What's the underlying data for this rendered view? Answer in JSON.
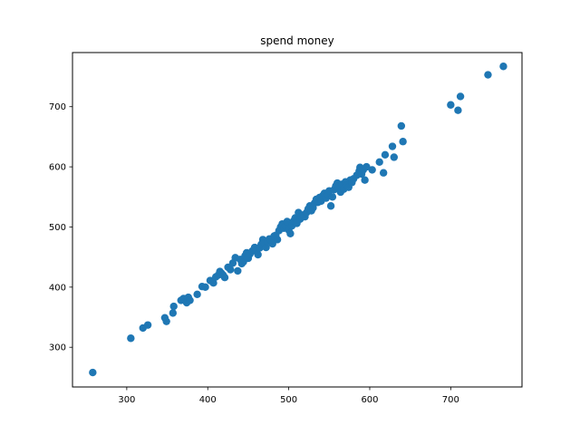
{
  "chart_data": {
    "type": "scatter",
    "title": "spend money",
    "xlabel": "",
    "ylabel": "",
    "xlim": [
      233,
      788
    ],
    "ylim": [
      234,
      790
    ],
    "xticks": [
      300,
      400,
      500,
      600,
      700
    ],
    "yticks": [
      300,
      400,
      500,
      600,
      700
    ],
    "grid": false,
    "marker_color": "#1f77b4",
    "points": [
      [
        258,
        258
      ],
      [
        305,
        315
      ],
      [
        320,
        332
      ],
      [
        326,
        337
      ],
      [
        347,
        349
      ],
      [
        349,
        343
      ],
      [
        357,
        357
      ],
      [
        358,
        368
      ],
      [
        367,
        378
      ],
      [
        370,
        381
      ],
      [
        374,
        374
      ],
      [
        376,
        383
      ],
      [
        378,
        378
      ],
      [
        387,
        388
      ],
      [
        393,
        401
      ],
      [
        397,
        400
      ],
      [
        403,
        411
      ],
      [
        405,
        410
      ],
      [
        407,
        407
      ],
      [
        410,
        417
      ],
      [
        413,
        420
      ],
      [
        415,
        426
      ],
      [
        417,
        423
      ],
      [
        419,
        420
      ],
      [
        421,
        416
      ],
      [
        425,
        433
      ],
      [
        428,
        429
      ],
      [
        431,
        440
      ],
      [
        434,
        449
      ],
      [
        437,
        427
      ],
      [
        440,
        446
      ],
      [
        442,
        439
      ],
      [
        444,
        442
      ],
      [
        446,
        452
      ],
      [
        448,
        457
      ],
      [
        450,
        448
      ],
      [
        452,
        455
      ],
      [
        455,
        460
      ],
      [
        458,
        466
      ],
      [
        460,
        460
      ],
      [
        462,
        454
      ],
      [
        464,
        465
      ],
      [
        466,
        471
      ],
      [
        468,
        479
      ],
      [
        470,
        473
      ],
      [
        472,
        466
      ],
      [
        474,
        476
      ],
      [
        476,
        480
      ],
      [
        478,
        478
      ],
      [
        480,
        472
      ],
      [
        482,
        485
      ],
      [
        484,
        486
      ],
      [
        486,
        479
      ],
      [
        488,
        494
      ],
      [
        490,
        500
      ],
      [
        492,
        505
      ],
      [
        494,
        498
      ],
      [
        496,
        502
      ],
      [
        498,
        509
      ],
      [
        500,
        495
      ],
      [
        502,
        489
      ],
      [
        504,
        502
      ],
      [
        506,
        510
      ],
      [
        508,
        515
      ],
      [
        510,
        506
      ],
      [
        512,
        524
      ],
      [
        514,
        513
      ],
      [
        516,
        518
      ],
      [
        518,
        520
      ],
      [
        520,
        517
      ],
      [
        522,
        524
      ],
      [
        524,
        530
      ],
      [
        526,
        535
      ],
      [
        528,
        527
      ],
      [
        530,
        532
      ],
      [
        532,
        540
      ],
      [
        534,
        546
      ],
      [
        536,
        541
      ],
      [
        538,
        549
      ],
      [
        540,
        543
      ],
      [
        542,
        552
      ],
      [
        544,
        556
      ],
      [
        546,
        548
      ],
      [
        548,
        555
      ],
      [
        550,
        560
      ],
      [
        552,
        535
      ],
      [
        554,
        550
      ],
      [
        556,
        562
      ],
      [
        558,
        568
      ],
      [
        560,
        573
      ],
      [
        562,
        566
      ],
      [
        564,
        558
      ],
      [
        566,
        571
      ],
      [
        568,
        563
      ],
      [
        570,
        575
      ],
      [
        572,
        569
      ],
      [
        574,
        566
      ],
      [
        576,
        578
      ],
      [
        578,
        574
      ],
      [
        580,
        580
      ],
      [
        584,
        586
      ],
      [
        587,
        593
      ],
      [
        588,
        599
      ],
      [
        590,
        588
      ],
      [
        592,
        595
      ],
      [
        594,
        578
      ],
      [
        596,
        600
      ],
      [
        603,
        595
      ],
      [
        612,
        608
      ],
      [
        617,
        590
      ],
      [
        619,
        620
      ],
      [
        628,
        634
      ],
      [
        630,
        616
      ],
      [
        639,
        668
      ],
      [
        641,
        642
      ],
      [
        700,
        703
      ],
      [
        709,
        694
      ],
      [
        712,
        717
      ],
      [
        746,
        753
      ],
      [
        765,
        767
      ]
    ]
  }
}
